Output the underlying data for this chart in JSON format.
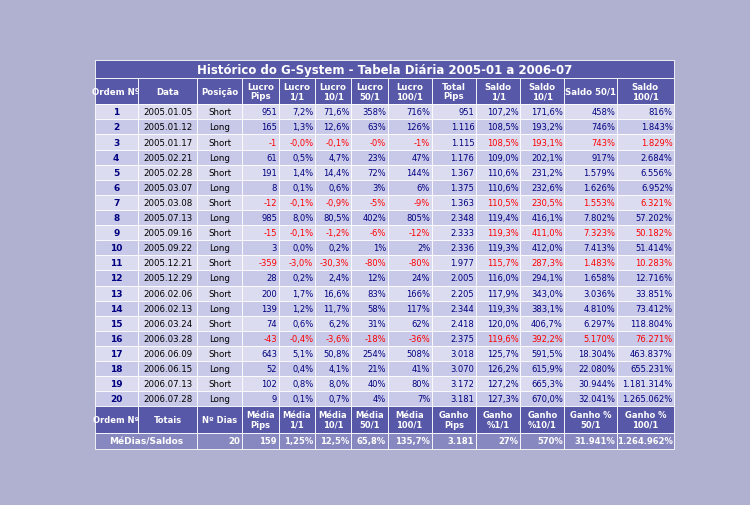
{
  "title": "Histórico do G-System - Tabela Diária 2005-01 a 2006-07",
  "col_headers": [
    "Ordem Nº",
    "Data",
    "Posição",
    "Lucro\nPips",
    "Lucro\n1/1",
    "Lucro\n10/1",
    "Lucro\n50/1",
    "Lucro\n100/1",
    "Total\nPips",
    "Saldo\n1/1",
    "Saldo\n10/1",
    "Saldo 50/1",
    "Saldo\n100/1"
  ],
  "footer_headers": [
    "Ordem Nº",
    "Totais",
    "Nº Dias",
    "Média\nPips",
    "Média\n1/1",
    "Média\n10/1",
    "Média\n50/1",
    "Média\n100/1",
    "Ganho\nPips",
    "Ganho\n%1/1",
    "Ganho\n%10/1",
    "Ganho %\n50/1",
    "Ganho %\n100/1"
  ],
  "footer_values": [
    "MéDias/Saldos",
    "20",
    "159",
    "1,25%",
    "12,5%",
    "65,8%",
    "135,7%",
    "3.181",
    "27%",
    "570%",
    "31.941%",
    "1.264.962%"
  ],
  "rows": [
    [
      1,
      "2005.01.05",
      "Short",
      "951",
      "7,2%",
      "71,6%",
      "358%",
      "716%",
      "951",
      "107,2%",
      "171,6%",
      "458%",
      "816%"
    ],
    [
      2,
      "2005.01.12",
      "Long",
      "165",
      "1,3%",
      "12,6%",
      "63%",
      "126%",
      "1.116",
      "108,5%",
      "193,2%",
      "746%",
      "1.843%"
    ],
    [
      3,
      "2005.01.17",
      "Short",
      "-1",
      "-0,0%",
      "-0,1%",
      "-0%",
      "-1%",
      "1.115",
      "108,5%",
      "193,1%",
      "743%",
      "1.829%"
    ],
    [
      4,
      "2005.02.21",
      "Long",
      "61",
      "0,5%",
      "4,7%",
      "23%",
      "47%",
      "1.176",
      "109,0%",
      "202,1%",
      "917%",
      "2.684%"
    ],
    [
      5,
      "2005.02.28",
      "Short",
      "191",
      "1,4%",
      "14,4%",
      "72%",
      "144%",
      "1.367",
      "110,6%",
      "231,2%",
      "1.579%",
      "6.556%"
    ],
    [
      6,
      "2005.03.07",
      "Long",
      "8",
      "0,1%",
      "0,6%",
      "3%",
      "6%",
      "1.375",
      "110,6%",
      "232,6%",
      "1.626%",
      "6.952%"
    ],
    [
      7,
      "2005.03.08",
      "Short",
      "-12",
      "-0,1%",
      "-0,9%",
      "-5%",
      "-9%",
      "1.363",
      "110,5%",
      "230,5%",
      "1.553%",
      "6.321%"
    ],
    [
      8,
      "2005.07.13",
      "Long",
      "985",
      "8,0%",
      "80,5%",
      "402%",
      "805%",
      "2.348",
      "119,4%",
      "416,1%",
      "7.802%",
      "57.202%"
    ],
    [
      9,
      "2005.09.16",
      "Short",
      "-15",
      "-0,1%",
      "-1,2%",
      "-6%",
      "-12%",
      "2.333",
      "119,3%",
      "411,0%",
      "7.323%",
      "50.182%"
    ],
    [
      10,
      "2005.09.22",
      "Long",
      "3",
      "0,0%",
      "0,2%",
      "1%",
      "2%",
      "2.336",
      "119,3%",
      "412,0%",
      "7.413%",
      "51.414%"
    ],
    [
      11,
      "2005.12.21",
      "Short",
      "-359",
      "-3,0%",
      "-30,3%",
      "-80%",
      "-80%",
      "1.977",
      "115,7%",
      "287,3%",
      "1.483%",
      "10.283%"
    ],
    [
      12,
      "2005.12.29",
      "Long",
      "28",
      "0,2%",
      "2,4%",
      "12%",
      "24%",
      "2.005",
      "116,0%",
      "294,1%",
      "1.658%",
      "12.716%"
    ],
    [
      13,
      "2006.02.06",
      "Short",
      "200",
      "1,7%",
      "16,6%",
      "83%",
      "166%",
      "2.205",
      "117,9%",
      "343,0%",
      "3.036%",
      "33.851%"
    ],
    [
      14,
      "2006.02.13",
      "Long",
      "139",
      "1,2%",
      "11,7%",
      "58%",
      "117%",
      "2.344",
      "119,3%",
      "383,1%",
      "4.810%",
      "73.412%"
    ],
    [
      15,
      "2006.03.24",
      "Short",
      "74",
      "0,6%",
      "6,2%",
      "31%",
      "62%",
      "2.418",
      "120,0%",
      "406,7%",
      "6.297%",
      "118.804%"
    ],
    [
      16,
      "2006.03.28",
      "Long",
      "-43",
      "-0,4%",
      "-3,6%",
      "-18%",
      "-36%",
      "2.375",
      "119,6%",
      "392,2%",
      "5.170%",
      "76.271%"
    ],
    [
      17,
      "2006.06.09",
      "Short",
      "643",
      "5,1%",
      "50,8%",
      "254%",
      "508%",
      "3.018",
      "125,7%",
      "591,5%",
      "18.304%",
      "463.837%"
    ],
    [
      18,
      "2006.06.15",
      "Long",
      "52",
      "0,4%",
      "4,1%",
      "21%",
      "41%",
      "3.070",
      "126,2%",
      "615,9%",
      "22.080%",
      "655.231%"
    ],
    [
      19,
      "2006.07.13",
      "Short",
      "102",
      "0,8%",
      "8,0%",
      "40%",
      "80%",
      "3.172",
      "127,2%",
      "665,3%",
      "30.944%",
      "1.181.314%"
    ],
    [
      20,
      "2006.07.28",
      "Long",
      "9",
      "0,1%",
      "0,7%",
      "4%",
      "7%",
      "3.181",
      "127,3%",
      "670,0%",
      "32.041%",
      "1.265.062%"
    ]
  ],
  "negative_rows": [
    3,
    7,
    9,
    11,
    16
  ],
  "title_bg": "#5858a8",
  "title_fg": "#ffffff",
  "header_bg": "#5858a8",
  "header_fg": "#ffffff",
  "row_bg_odd": "#dcdcf0",
  "row_bg_even": "#c8c8e8",
  "footer_header_bg": "#5858a8",
  "footer_header_fg": "#ffffff",
  "footer_bg": "#8888c0",
  "footer_fg": "#ffffff",
  "negative_fg": "#ff0000",
  "dark_blue_fg": "#000080",
  "black_fg": "#000000",
  "bg_color": "#b0b0d0",
  "col_widths_raw": [
    55,
    75,
    57,
    46,
    46,
    46,
    46,
    56,
    56,
    56,
    56,
    66,
    73
  ]
}
